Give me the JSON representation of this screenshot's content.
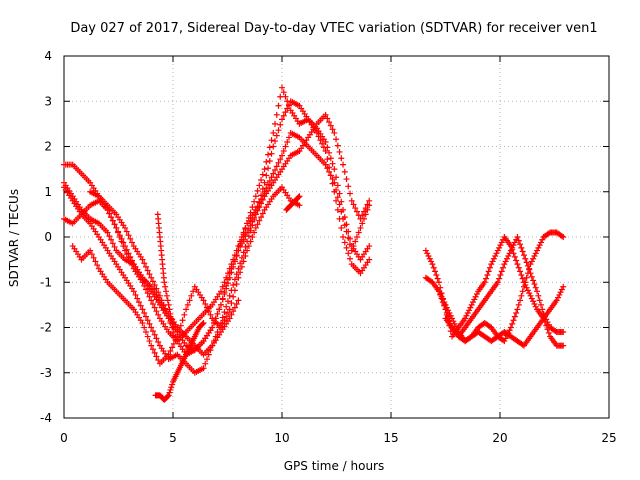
{
  "chart_data": {
    "type": "scatter",
    "title": "Day 027 of 2017, Sidereal Day-to-day VTEC variation (SDTVAR) for receiver ven1",
    "xlabel": "GPS time / hours",
    "ylabel": "SDTVAR / TECUs",
    "xlim": [
      0,
      25
    ],
    "ylim": [
      -4,
      4
    ],
    "xticks": [
      0,
      5,
      10,
      15,
      20,
      25
    ],
    "yticks": [
      -4,
      -3,
      -2,
      -1,
      0,
      1,
      2,
      3,
      4
    ],
    "grid": true,
    "marker": "+",
    "color": "#ff0000",
    "series": [
      {
        "x": [
          0.0,
          0.4,
          0.8,
          1.2,
          1.6,
          2.0,
          2.4,
          2.8,
          3.2,
          3.6,
          4.0,
          4.4,
          4.8,
          5.2,
          5.6,
          6.0,
          6.4,
          6.8,
          7.2,
          7.6,
          8.0,
          8.4,
          8.8,
          9.2,
          9.6,
          10.0,
          10.4,
          10.8,
          11.2,
          11.6,
          12.0,
          12.4,
          12.8,
          13.2,
          13.6,
          14.0
        ],
        "y": [
          1.6,
          1.6,
          1.4,
          1.2,
          0.9,
          0.6,
          0.2,
          -0.2,
          -0.6,
          -0.9,
          -1.2,
          -1.5,
          -1.8,
          -2.1,
          -2.4,
          -2.5,
          -2.3,
          -2.0,
          -1.5,
          -0.9,
          -0.3,
          0.3,
          0.9,
          1.5,
          2.3,
          3.3,
          2.8,
          2.5,
          2.6,
          2.3,
          1.9,
          1.0,
          0.0,
          -0.6,
          -0.8,
          -0.5
        ]
      },
      {
        "x": [
          0.0,
          0.4,
          0.8,
          1.2,
          1.6,
          2.0,
          2.4,
          2.8,
          3.2,
          3.6,
          4.0,
          4.4,
          4.8,
          5.2,
          5.6,
          6.0,
          6.4,
          6.8,
          7.2,
          7.6,
          8.0,
          8.4,
          8.8,
          9.2,
          9.6,
          10.0,
          10.4,
          10.8,
          11.2,
          11.6,
          12.0,
          12.4,
          12.8,
          13.2,
          13.6,
          14.0
        ],
        "y": [
          1.1,
          0.8,
          0.5,
          0.3,
          0.0,
          -0.3,
          -0.6,
          -0.9,
          -1.2,
          -1.6,
          -2.0,
          -2.4,
          -2.7,
          -2.6,
          -2.8,
          -3.0,
          -2.9,
          -2.4,
          -1.9,
          -1.3,
          -0.7,
          -0.1,
          0.5,
          1.2,
          2.0,
          2.6,
          3.0,
          2.9,
          2.6,
          2.4,
          2.1,
          1.5,
          0.6,
          -0.2,
          -0.5,
          -0.2
        ]
      },
      {
        "x": [
          0.0,
          0.4,
          0.8,
          1.2,
          1.6,
          2.0,
          2.4,
          2.8,
          3.2,
          3.6,
          4.0,
          4.4,
          4.8,
          5.2,
          5.6,
          6.0,
          6.4,
          6.8,
          7.2,
          7.6,
          8.0,
          8.4,
          8.8,
          9.2,
          9.6,
          10.0,
          10.4,
          10.8,
          11.2,
          11.6,
          12.0,
          12.4,
          12.8,
          13.2,
          13.6,
          14.0
        ],
        "y": [
          0.4,
          0.3,
          0.5,
          0.7,
          0.8,
          0.6,
          0.2,
          -0.3,
          -0.7,
          -1.0,
          -1.4,
          -1.8,
          -2.1,
          -2.3,
          -2.1,
          -1.9,
          -1.7,
          -1.5,
          -1.2,
          -0.7,
          -0.2,
          0.3,
          0.6,
          1.0,
          1.4,
          1.8,
          2.3,
          2.2,
          2.0,
          1.8,
          1.6,
          1.2,
          0.4,
          -0.3,
          0.2,
          0.7
        ]
      },
      {
        "x": [
          0.4,
          0.8,
          1.2,
          1.6,
          2.0,
          2.4,
          2.8,
          3.2,
          3.6,
          4.0,
          4.4,
          4.8,
          5.2,
          5.6,
          6.0,
          6.4,
          6.8,
          7.2,
          7.6,
          8.0,
          8.4,
          8.8,
          9.2,
          9.6,
          10.0,
          10.4,
          10.8
        ],
        "y": [
          -0.2,
          -0.5,
          -0.3,
          -0.7,
          -1.0,
          -1.2,
          -1.4,
          -1.6,
          -1.9,
          -2.4,
          -2.8,
          -2.6,
          -2.2,
          -1.6,
          -1.1,
          -1.4,
          -1.8,
          -2.0,
          -1.6,
          -0.9,
          -0.3,
          0.2,
          0.6,
          0.9,
          1.1,
          0.8,
          0.7
        ]
      },
      {
        "x": [
          0.0,
          0.4,
          0.8,
          1.2,
          1.6,
          2.0,
          2.4,
          2.8,
          3.2,
          3.6,
          4.0,
          4.4,
          4.8,
          5.2,
          5.6,
          6.0,
          6.4,
          6.8,
          7.2,
          7.6,
          8.0
        ],
        "y": [
          1.2,
          0.9,
          0.6,
          0.4,
          0.3,
          0.1,
          -0.3,
          -0.5,
          -0.6,
          -0.9,
          -1.1,
          -1.4,
          -1.7,
          -2.0,
          -2.2,
          -2.4,
          -2.6,
          -2.4,
          -2.1,
          -1.8,
          -1.4
        ]
      },
      {
        "x": [
          1.2,
          1.6,
          2.0,
          2.4,
          2.8,
          3.2,
          3.6,
          4.0,
          4.4,
          4.8,
          5.2,
          5.6,
          6.0,
          6.4,
          6.8,
          7.2,
          7.6,
          8.0,
          8.4,
          8.8,
          9.2,
          9.6,
          10.0,
          10.4,
          10.8,
          11.2,
          11.6,
          12.0,
          12.4,
          12.8,
          13.2,
          13.6,
          14.0
        ],
        "y": [
          1.0,
          0.9,
          0.7,
          0.5,
          0.2,
          -0.2,
          -0.5,
          -0.9,
          -1.3,
          -1.8,
          -2.3,
          -2.6,
          -2.5,
          -2.3,
          -2.0,
          -1.5,
          -0.8,
          -0.3,
          0.1,
          0.5,
          0.9,
          1.2,
          1.5,
          1.8,
          1.9,
          2.2,
          2.5,
          2.7,
          2.3,
          1.6,
          0.8,
          0.4,
          0.8
        ]
      },
      {
        "x": [
          4.2,
          4.4,
          4.6,
          4.8,
          5.0,
          5.2,
          5.4,
          5.6,
          5.8,
          6.0,
          6.2,
          6.4
        ],
        "y": [
          -3.5,
          -3.5,
          -3.6,
          -3.5,
          -3.2,
          -3.0,
          -2.8,
          -2.6,
          -2.4,
          -2.2,
          -2.0,
          -1.9
        ]
      },
      {
        "x": [
          4.3,
          4.4,
          4.5,
          4.6,
          4.8,
          5.0
        ],
        "y": [
          0.5,
          0.0,
          -0.5,
          -1.0,
          -1.5,
          -2.0
        ]
      },
      {
        "x": [
          10.2,
          10.4,
          10.6,
          10.8
        ],
        "y": [
          0.6,
          0.7,
          0.8,
          0.9
        ]
      },
      {
        "x": [
          16.6,
          16.9,
          17.2,
          17.5,
          17.8,
          18.1,
          18.4,
          18.7,
          19.0,
          19.3,
          19.6,
          19.9,
          20.2,
          20.5,
          20.8,
          21.1,
          21.4,
          21.7,
          22.0,
          22.3,
          22.6,
          22.9
        ],
        "y": [
          -0.3,
          -0.6,
          -1.0,
          -1.6,
          -2.2,
          -2.0,
          -1.8,
          -1.5,
          -1.2,
          -1.0,
          -0.6,
          -0.3,
          0.0,
          -0.2,
          -0.6,
          -1.0,
          -1.3,
          -1.6,
          -1.8,
          -2.2,
          -2.4,
          -2.4
        ]
      },
      {
        "x": [
          16.6,
          16.9,
          17.2,
          17.5,
          17.8,
          18.1,
          18.4,
          18.7,
          19.0,
          19.3,
          19.6,
          19.9,
          20.2,
          20.5,
          20.8,
          21.1,
          21.4,
          21.7,
          22.0,
          22.3,
          22.6,
          22.9
        ],
        "y": [
          -0.9,
          -1.0,
          -1.2,
          -1.6,
          -2.0,
          -2.2,
          -2.0,
          -1.8,
          -1.6,
          -1.4,
          -1.2,
          -1.0,
          -0.6,
          -0.3,
          0.0,
          -0.4,
          -0.8,
          -1.2,
          -1.7,
          -2.0,
          -2.1,
          -2.1
        ]
      },
      {
        "x": [
          17.2,
          17.5,
          17.8,
          18.1,
          18.4,
          18.7,
          19.0,
          19.3,
          19.6,
          19.9,
          20.2,
          20.5,
          20.8,
          21.1,
          21.4,
          21.7,
          22.0,
          22.3,
          22.6,
          22.9
        ],
        "y": [
          -1.2,
          -1.5,
          -1.8,
          -2.1,
          -2.3,
          -2.2,
          -2.0,
          -1.9,
          -2.0,
          -2.2,
          -2.3,
          -2.0,
          -1.6,
          -1.1,
          -0.6,
          -0.3,
          0.0,
          0.1,
          0.1,
          0.0
        ]
      },
      {
        "x": [
          17.5,
          17.8,
          18.1,
          18.4,
          18.7,
          19.0,
          19.3,
          19.6,
          19.9,
          20.2,
          20.5,
          20.8,
          21.1,
          21.4,
          21.7,
          22.0,
          22.3,
          22.6,
          22.9
        ],
        "y": [
          -1.8,
          -2.0,
          -2.2,
          -2.3,
          -2.2,
          -2.1,
          -2.2,
          -2.3,
          -2.2,
          -2.1,
          -2.2,
          -2.3,
          -2.4,
          -2.2,
          -2.0,
          -1.8,
          -1.6,
          -1.4,
          -1.1
        ]
      }
    ]
  }
}
